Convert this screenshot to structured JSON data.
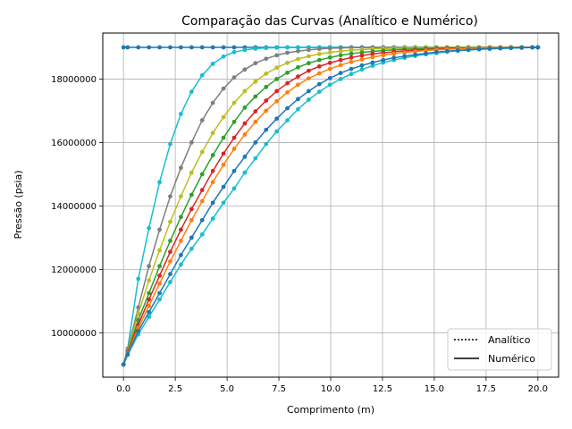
{
  "chart_data": {
    "type": "line",
    "title": "Comparação das Curvas (Analítico e Numérico)",
    "xlabel": "Comprimento (m)",
    "ylabel": "Pressão (psia)",
    "xlim": [
      -1,
      21
    ],
    "ylim": [
      8600000,
      19450000
    ],
    "xticks": [
      0.0,
      2.5,
      5.0,
      7.5,
      10.0,
      12.5,
      15.0,
      17.5,
      20.0
    ],
    "xtick_labels": [
      "0.0",
      "2.5",
      "5.0",
      "7.5",
      "10.0",
      "12.5",
      "15.0",
      "17.5",
      "20.0"
    ],
    "yticks": [
      10000000,
      12000000,
      14000000,
      16000000,
      18000000
    ],
    "ytick_labels": [
      "10000000",
      "12000000",
      "14000000",
      "16000000",
      "18000000"
    ],
    "grid": true,
    "legend": {
      "position": "lower-right",
      "entries": [
        {
          "label": "Analítico",
          "style": "dotted"
        },
        {
          "label": "Numérico",
          "style": "solid"
        }
      ]
    },
    "x": [
      0.0,
      0.2,
      0.714,
      1.228,
      1.742,
      2.256,
      2.77,
      3.284,
      3.798,
      4.312,
      4.826,
      5.34,
      5.854,
      6.368,
      6.882,
      7.396,
      7.91,
      8.424,
      8.938,
      9.452,
      9.966,
      10.48,
      10.994,
      11.508,
      12.022,
      12.536,
      13.05,
      13.564,
      14.078,
      14.592,
      15.106,
      15.62,
      16.134,
      16.648,
      17.162,
      17.676,
      18.19,
      18.704,
      19.218,
      19.732,
      20.0
    ],
    "series": [
      {
        "color": "#1f77b4",
        "values": [
          19000000,
          19000000,
          19000000,
          19000000,
          19000000,
          19000000,
          19000000,
          19000000,
          19000000,
          19000000,
          19000000,
          19000000,
          19000000,
          19000000,
          19000000,
          19000000,
          19000000,
          19000000,
          19000000,
          19000000,
          19000000,
          19000000,
          19000000,
          19000000,
          19000000,
          19000000,
          19000000,
          19000000,
          19000000,
          19000000,
          19000000,
          19000000,
          19000000,
          19000000,
          19000000,
          19000000,
          19000000,
          19000000,
          19000000,
          19000000,
          19000000
        ]
      },
      {
        "color": "#17becf",
        "values": [
          9000000,
          9500000,
          11700000,
          13300000,
          14750000,
          15950000,
          16900000,
          17600000,
          18120000,
          18480000,
          18710000,
          18850000,
          18920000,
          18960000,
          18980000,
          18990000,
          19000000,
          19000000,
          19000000,
          19000000,
          19000000,
          19000000,
          19000000,
          19000000,
          19000000,
          19000000,
          19000000,
          19000000,
          19000000,
          19000000,
          19000000,
          19000000,
          19000000,
          19000000,
          19000000,
          19000000,
          19000000,
          19000000,
          19000000,
          19000000,
          19000000
        ]
      },
      {
        "color": "#7f7f7f",
        "values": [
          9000000,
          9450000,
          10800000,
          12100000,
          13250000,
          14300000,
          15200000,
          16000000,
          16700000,
          17250000,
          17700000,
          18050000,
          18300000,
          18500000,
          18640000,
          18750000,
          18830000,
          18880000,
          18920000,
          18950000,
          18970000,
          18980000,
          18990000,
          18995000,
          19000000,
          19000000,
          19000000,
          19000000,
          19000000,
          19000000,
          19000000,
          19000000,
          19000000,
          19000000,
          19000000,
          19000000,
          19000000,
          19000000,
          19000000,
          19000000,
          19000000
        ]
      },
      {
        "color": "#bcbd22",
        "values": [
          9000000,
          9420000,
          10600000,
          11650000,
          12600000,
          13500000,
          14300000,
          15050000,
          15700000,
          16300000,
          16800000,
          17250000,
          17620000,
          17920000,
          18170000,
          18360000,
          18510000,
          18630000,
          18720000,
          18790000,
          18840000,
          18880000,
          18910000,
          18930000,
          18950000,
          18960000,
          18970000,
          18980000,
          18985000,
          18990000,
          18993000,
          18995000,
          18997000,
          18998000,
          18999000,
          19000000,
          19000000,
          19000000,
          19000000,
          19000000,
          19000000
        ]
      },
      {
        "color": "#2ca02c",
        "values": [
          9000000,
          9400000,
          10400000,
          11250000,
          12100000,
          12900000,
          13650000,
          14350000,
          15000000,
          15600000,
          16150000,
          16650000,
          17100000,
          17450000,
          17750000,
          18000000,
          18200000,
          18370000,
          18500000,
          18600000,
          18680000,
          18750000,
          18800000,
          18840000,
          18870000,
          18900000,
          18920000,
          18940000,
          18950000,
          18960000,
          18970000,
          18978000,
          18984000,
          18988000,
          18992000,
          18995000,
          18997000,
          18998000,
          18999000,
          19000000,
          19000000
        ]
      },
      {
        "color": "#d62728",
        "values": [
          9000000,
          9380000,
          10250000,
          11050000,
          11800000,
          12550000,
          13250000,
          13900000,
          14500000,
          15100000,
          15650000,
          16150000,
          16600000,
          16980000,
          17320000,
          17620000,
          17870000,
          18080000,
          18260000,
          18400000,
          18510000,
          18600000,
          18680000,
          18740000,
          18790000,
          18830000,
          18860000,
          18890000,
          18910000,
          18930000,
          18945000,
          18958000,
          18968000,
          18976000,
          18983000,
          18988000,
          18992000,
          18995000,
          18998000,
          19000000,
          19000000
        ]
      },
      {
        "color": "#ff7f0e",
        "values": [
          9000000,
          9350000,
          10150000,
          10850000,
          11550000,
          12250000,
          12900000,
          13550000,
          14150000,
          14750000,
          15300000,
          15800000,
          16250000,
          16650000,
          17000000,
          17300000,
          17580000,
          17820000,
          18020000,
          18180000,
          18320000,
          18440000,
          18540000,
          18620000,
          18690000,
          18750000,
          18800000,
          18840000,
          18870000,
          18900000,
          18920000,
          18940000,
          18955000,
          18967000,
          18977000,
          18985000,
          18990000,
          18994000,
          18997000,
          18999000,
          19000000
        ]
      },
      {
        "color": "#17becf",
        "values": [
          9000000,
          9300000,
          9950000,
          10500000,
          11050000,
          11600000,
          12150000,
          12650000,
          13100000,
          13600000,
          14100000,
          14550000,
          15050000,
          15500000,
          15950000,
          16350000,
          16700000,
          17050000,
          17350000,
          17600000,
          17820000,
          18000000,
          18160000,
          18300000,
          18420000,
          18520000,
          18600000,
          18670000,
          18730000,
          18780000,
          18820000,
          18860000,
          18890000,
          18915000,
          18935000,
          18950000,
          18965000,
          18975000,
          18985000,
          18995000,
          19000000
        ]
      },
      {
        "color": "#1f77b4",
        "values": [
          9000000,
          9320000,
          10050000,
          10650000,
          11250000,
          11850000,
          12450000,
          13000000,
          13550000,
          14100000,
          14600000,
          15100000,
          15550000,
          16000000,
          16400000,
          16750000,
          17080000,
          17370000,
          17620000,
          17840000,
          18030000,
          18190000,
          18320000,
          18430000,
          18520000,
          18600000,
          18670000,
          18720000,
          18770000,
          18810000,
          18850000,
          18880000,
          18905000,
          18925000,
          18945000,
          18960000,
          18972000,
          18982000,
          18990000,
          18997000,
          19000000
        ]
      }
    ]
  }
}
